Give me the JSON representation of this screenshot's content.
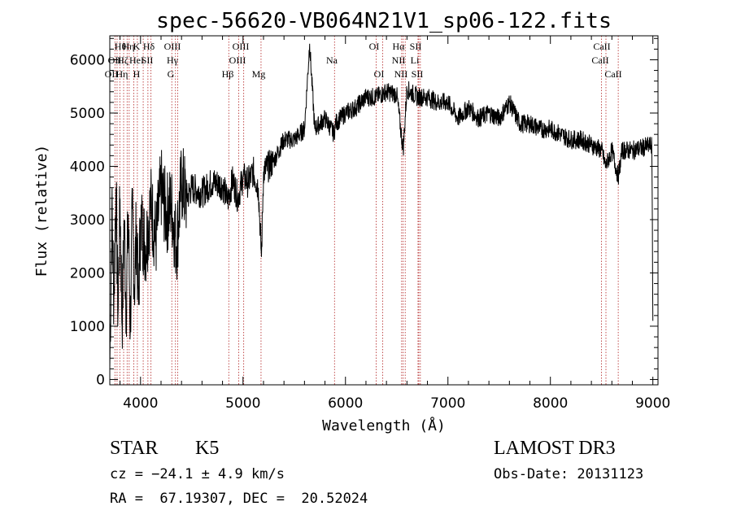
{
  "chart_data": {
    "type": "line",
    "title": "spec-56620-VB064N21V1_sp06-122.fits",
    "xlabel": "Wavelength (Å)",
    "ylabel": "Flux (relative)",
    "xlim": [
      3700,
      9050
    ],
    "ylim": [
      -100,
      6450
    ],
    "xticks": [
      4000,
      5000,
      6000,
      7000,
      8000,
      9000
    ],
    "yticks": [
      0,
      1000,
      2000,
      3000,
      4000,
      5000,
      6000
    ],
    "grid": false,
    "line_color": "#000000",
    "marker_color": "#b22222",
    "series": [
      {
        "name": "flux",
        "x": [
          3700,
          3720,
          3740,
          3760,
          3780,
          3800,
          3820,
          3840,
          3860,
          3880,
          3900,
          3920,
          3940,
          3960,
          3980,
          4000,
          4050,
          4100,
          4150,
          4200,
          4250,
          4300,
          4350,
          4400,
          4450,
          4500,
          4600,
          4700,
          4800,
          4850,
          4900,
          4950,
          5000,
          5050,
          5100,
          5150,
          5180,
          5200,
          5300,
          5400,
          5500,
          5600,
          5650,
          5700,
          5800,
          5890,
          5900,
          6000,
          6100,
          6200,
          6300,
          6400,
          6500,
          6563,
          6600,
          6700,
          6800,
          6900,
          7000,
          7100,
          7200,
          7300,
          7400,
          7500,
          7600,
          7700,
          7800,
          7900,
          8000,
          8100,
          8200,
          8300,
          8400,
          8500,
          8540,
          8600,
          8662,
          8700,
          8800,
          8900,
          8990,
          9000
        ],
        "y": [
          200,
          3200,
          1500,
          3600,
          1200,
          3400,
          1000,
          3000,
          1300,
          3100,
          900,
          3200,
          1700,
          2900,
          1400,
          3000,
          2500,
          3300,
          2600,
          3600,
          3100,
          3300,
          2500,
          3700,
          3400,
          3600,
          3500,
          3700,
          3650,
          3350,
          3750,
          3400,
          3800,
          3700,
          3900,
          3600,
          2300,
          3900,
          4100,
          4500,
          4500,
          4700,
          6300,
          4700,
          4900,
          4600,
          4800,
          5000,
          5100,
          5300,
          5300,
          5400,
          5350,
          4300,
          5450,
          5300,
          5300,
          5200,
          5200,
          4900,
          5100,
          4900,
          5000,
          4900,
          5200,
          4800,
          4800,
          4700,
          4700,
          4600,
          4500,
          4500,
          4400,
          4300,
          4000,
          4300,
          3800,
          4300,
          4300,
          4350,
          4400,
          1100
        ]
      }
    ],
    "lines": [
      {
        "x": 3750,
        "labels": [
          "Hθ",
          "OII"
        ]
      },
      {
        "x": 3771,
        "labels": [
          "Hη"
        ]
      },
      {
        "x": 3798,
        "labels": [
          "Hζ"
        ]
      },
      {
        "x": 3835,
        "labels": [
          "Hη"
        ]
      },
      {
        "x": 3869,
        "labels": [
          "NeIII"
        ]
      },
      {
        "x": 3889,
        "labels": [
          "Hζ"
        ]
      },
      {
        "x": 3934,
        "labels": [
          "K"
        ]
      },
      {
        "x": 3969,
        "labels": [
          "H"
        ]
      },
      {
        "x": 4026,
        "labels": [
          "HeI"
        ]
      },
      {
        "x": 4072,
        "labels": [
          "SII"
        ]
      },
      {
        "x": 4102,
        "labels": [
          "Hδ"
        ]
      },
      {
        "x": 4305,
        "labels": [
          "G"
        ]
      },
      {
        "x": 4341,
        "labels": [
          "Hγ"
        ]
      },
      {
        "x": 4363,
        "labels": [
          "OIII"
        ]
      },
      {
        "x": 4861,
        "labels": [
          "Hβ"
        ]
      },
      {
        "x": 4959,
        "labels": [
          "OIII"
        ]
      },
      {
        "x": 5007,
        "labels": [
          "OIII"
        ]
      },
      {
        "x": 5176,
        "labels": [
          "Mg"
        ]
      },
      {
        "x": 5893,
        "labels": [
          "Na"
        ]
      },
      {
        "x": 6300,
        "labels": [
          "OI"
        ]
      },
      {
        "x": 6364,
        "labels": [
          "OI"
        ]
      },
      {
        "x": 6548,
        "labels": [
          "NII"
        ]
      },
      {
        "x": 6563,
        "labels": [
          "Hα"
        ]
      },
      {
        "x": 6583,
        "labels": [
          "NII"
        ]
      },
      {
        "x": 6708,
        "labels": [
          "Li"
        ]
      },
      {
        "x": 6716,
        "labels": [
          "SII"
        ]
      },
      {
        "x": 6731,
        "labels": [
          "SII"
        ]
      },
      {
        "x": 8498,
        "labels": [
          "CaII"
        ]
      },
      {
        "x": 8542,
        "labels": [
          "CaII"
        ]
      },
      {
        "x": 8662,
        "labels": [
          "CaII"
        ]
      }
    ],
    "line_label_texts": [
      "Hθ",
      "Hη",
      "K",
      "Hδ",
      "OIII",
      "OIII",
      "OII",
      "Hζ",
      "HeI",
      "SII",
      "Hγ",
      "OIII",
      "OII",
      "Hη",
      "H",
      "G",
      "Hβ",
      "Mg",
      "Na",
      "OI",
      "Hα",
      "SII",
      "NII",
      "Li",
      "OI",
      "NII",
      "SII",
      "CaII",
      "CaII",
      "CaII"
    ]
  },
  "info": {
    "class_label": "STAR",
    "subclass": "K5",
    "cz": "cz = −24.1 ± 4.9 km/s",
    "coords": "RA =  67.19307, DEC =  20.52024",
    "survey": "LAMOST DR3",
    "obs_date": "Obs-Date: 20131123"
  }
}
